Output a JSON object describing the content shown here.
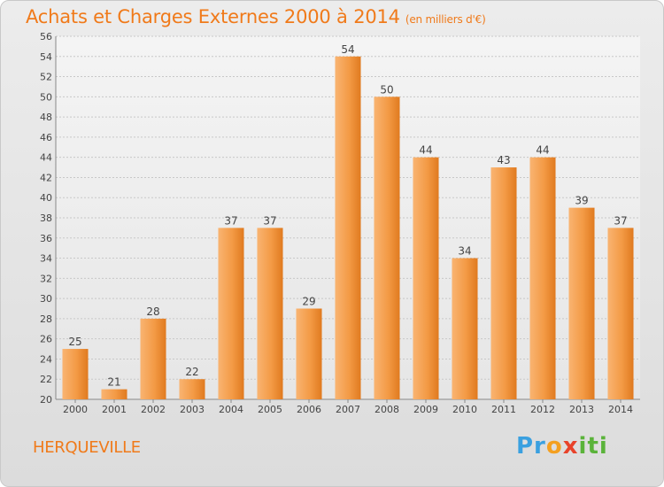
{
  "title": "Achats et Charges Externes 2000 à 2014",
  "subtitle": "(en milliers d'€)",
  "commune": "HERQUEVILLE",
  "logo": {
    "p": "Pr",
    "o": "o",
    "x": "x",
    "iti": "iti"
  },
  "colors": {
    "accent": "#f07a1a",
    "bar_light": "#f7a65a",
    "bar_dark": "#e07a1f"
  },
  "chart_data": {
    "type": "bar",
    "categories": [
      "2000",
      "2001",
      "2002",
      "2003",
      "2004",
      "2005",
      "2006",
      "2007",
      "2008",
      "2009",
      "2010",
      "2011",
      "2012",
      "2013",
      "2014"
    ],
    "values": [
      25,
      21,
      28,
      22,
      37,
      37,
      29,
      54,
      50,
      44,
      34,
      43,
      44,
      39,
      37
    ],
    "ylim": [
      20,
      56
    ],
    "yticks": [
      20,
      22,
      24,
      26,
      28,
      30,
      32,
      34,
      36,
      38,
      40,
      42,
      44,
      46,
      48,
      50,
      52,
      54,
      56
    ],
    "grid": true,
    "data_labels": true
  }
}
